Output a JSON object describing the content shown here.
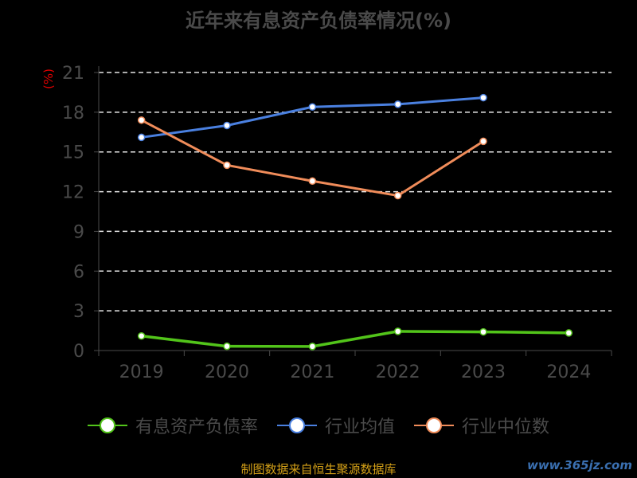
{
  "chart_data": {
    "type": "line",
    "title": "近年来有息资产负债率情况(%)",
    "ylabel": "(%)",
    "xlabel": "",
    "categories": [
      "2019",
      "2020",
      "2021",
      "2022",
      "2023",
      "2024"
    ],
    "ylim": [
      0,
      21
    ],
    "yticks": [
      0,
      3,
      6,
      9,
      12,
      15,
      18,
      21
    ],
    "grid": true,
    "legend_position": "bottom",
    "series": [
      {
        "name": "有息资产负债率",
        "color": "#52c41a",
        "values": [
          1.1,
          0.32,
          0.31,
          1.45,
          1.41,
          1.33
        ]
      },
      {
        "name": "行业均值",
        "color": "#4a80e0",
        "values": [
          16.1,
          17.0,
          18.4,
          18.6,
          19.1,
          null
        ]
      },
      {
        "name": "行业中位数",
        "color": "#f08c5a",
        "values": [
          17.4,
          14.0,
          12.8,
          11.7,
          15.8,
          null
        ]
      }
    ]
  },
  "footer": {
    "source": "制图数据来自恒生聚源数据库"
  },
  "watermark": {
    "text": "www.365jz.com"
  }
}
